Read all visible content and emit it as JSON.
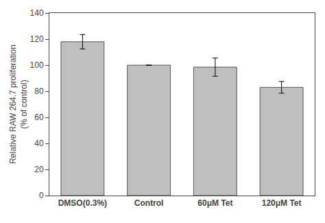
{
  "chart_data": {
    "type": "bar",
    "categories": [
      "DMSO(0.3%)",
      "Control",
      "60μM Tet",
      "120μM Tet"
    ],
    "values": [
      118.0,
      100.0,
      98.5,
      83.0
    ],
    "errors": [
      5.5,
      0.0,
      7.0,
      4.5
    ],
    "color": "#bfbfbf",
    "ylabel": "Relative RAW 264.7 proliferation\n(% of control)",
    "ylim": [
      0,
      140
    ],
    "yticks": [
      0,
      20,
      40,
      60,
      80,
      100,
      120,
      140
    ],
    "grid": false
  }
}
